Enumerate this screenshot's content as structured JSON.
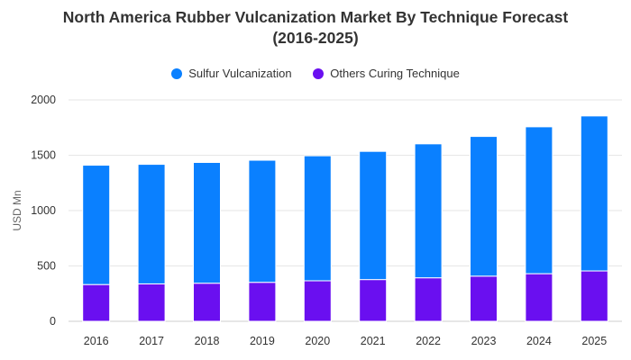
{
  "chart_data": {
    "type": "bar",
    "stacked": true,
    "title_line1": "North America Rubber Vulcanization Market By Technique Forecast",
    "title_line2": "(2016-2025)",
    "xlabel": "",
    "ylabel": "USD Mn",
    "ylim": [
      0,
      2000
    ],
    "yticks": [
      0,
      500,
      1000,
      1500,
      2000
    ],
    "grid": true,
    "legend_position": "top-center",
    "categories": [
      "2016",
      "2017",
      "2018",
      "2019",
      "2020",
      "2021",
      "2022",
      "2023",
      "2024",
      "2025"
    ],
    "series": [
      {
        "name": "Others Curing Technique",
        "color": "#6a0ff0",
        "values": [
          332,
          338,
          344,
          352,
          366,
          377,
          393,
          408,
          430,
          455
        ]
      },
      {
        "name": "Sulfur Vulcanization",
        "color": "#0a80ff",
        "values": [
          1078,
          1080,
          1091,
          1103,
          1129,
          1158,
          1210,
          1262,
          1327,
          1400
        ]
      }
    ]
  }
}
